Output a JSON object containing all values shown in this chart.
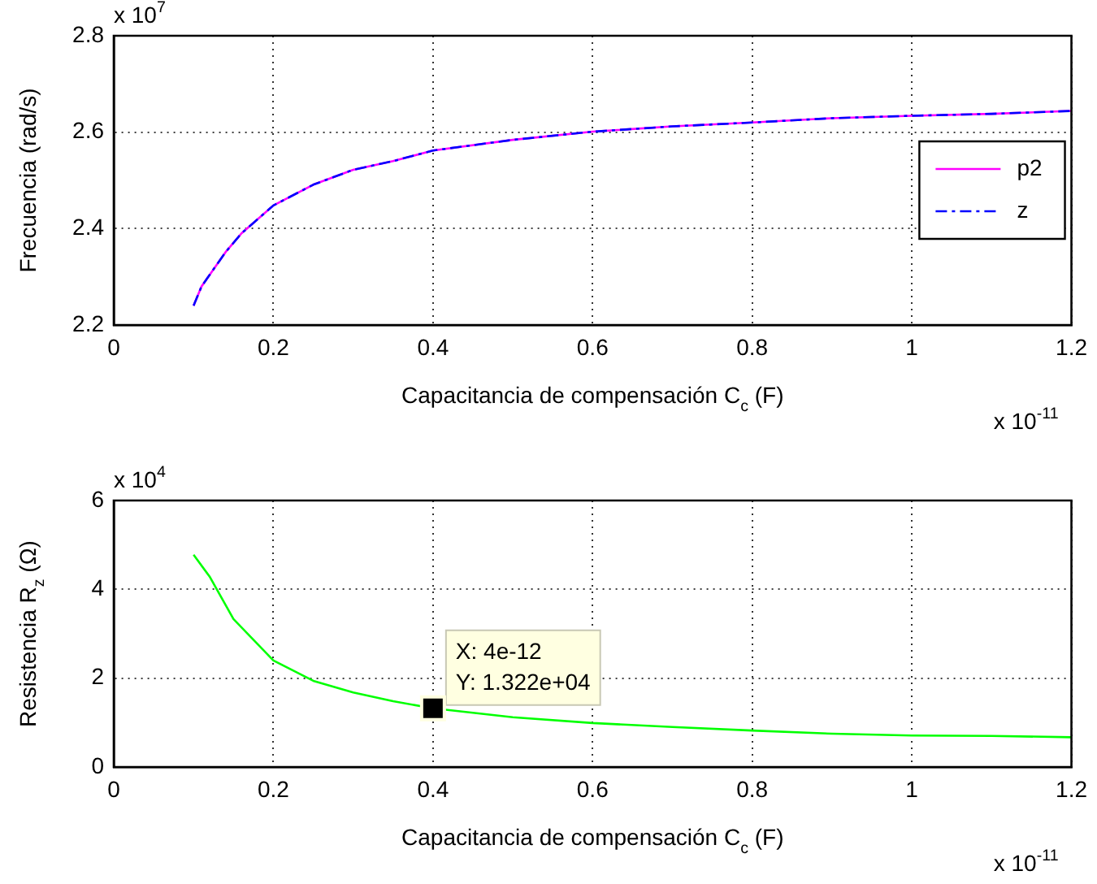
{
  "chart_data": [
    {
      "type": "line",
      "xlabel": "Capacitancia de compensación C$_{c}$ (F)",
      "ylabel": "Frecuencia (rad/s)",
      "xlim": [
        0,
        1.2
      ],
      "xticks": [
        0,
        0.2,
        0.4,
        0.6,
        0.8,
        1,
        1.2
      ],
      "ylim": [
        2.2,
        2.8
      ],
      "yticks": [
        2.2,
        2.4,
        2.6,
        2.8
      ],
      "grid": true,
      "legend": "right",
      "marker": "none",
      "annotations": [
        "x 10$^{7}$",
        "x 10$^{-11}$"
      ],
      "series": [
        {
          "name": "p2",
          "color": "#ff00ff",
          "line_style": "solid",
          "x": [
            0.1,
            0.11,
            0.14,
            0.16,
            0.2,
            0.25,
            0.3,
            0.35,
            0.4,
            0.5,
            0.6,
            0.7,
            0.8,
            0.9,
            1.0,
            1.1,
            1.2
          ],
          "values": [
            2.24,
            2.28,
            2.351,
            2.39,
            2.448,
            2.491,
            2.522,
            2.54,
            2.562,
            2.584,
            2.601,
            2.612,
            2.62,
            2.629,
            2.634,
            2.638,
            2.644
          ]
        },
        {
          "name": "z",
          "color": "#0000ff",
          "line_style": "dashed",
          "x": [
            0.1,
            0.11,
            0.14,
            0.16,
            0.2,
            0.25,
            0.3,
            0.35,
            0.4,
            0.5,
            0.6,
            0.7,
            0.8,
            0.9,
            1.0,
            1.1,
            1.2
          ],
          "values": [
            2.24,
            2.28,
            2.351,
            2.39,
            2.448,
            2.491,
            2.522,
            2.54,
            2.562,
            2.584,
            2.601,
            2.612,
            2.62,
            2.629,
            2.634,
            2.638,
            2.644
          ]
        }
      ]
    },
    {
      "type": "line",
      "xlabel": "Capacitancia de compensación C$_{c}$ (F)",
      "ylabel": "Resistencia R$_{z}$ (Ω)",
      "xlim": [
        0,
        1.2
      ],
      "xticks": [
        0,
        0.2,
        0.4,
        0.6,
        0.8,
        1,
        1.2
      ],
      "ylim": [
        0,
        6
      ],
      "yticks": [
        0,
        2,
        4,
        6
      ],
      "grid": true,
      "marker": "none",
      "annotations": [
        "x 10$^{4}$",
        "x 10$^{-11}$",
        {
          "text": "X: 4e-12\nY: 1.322e+04",
          "x": 0.4,
          "y": 1.322
        }
      ],
      "series": [
        {
          "color": "#00ff00",
          "line_style": "solid",
          "x": [
            0.1,
            0.12,
            0.15,
            0.2,
            0.25,
            0.3,
            0.35,
            0.4,
            0.5,
            0.6,
            0.7,
            0.8,
            0.9,
            1.0,
            1.1,
            1.2
          ],
          "values": [
            4.78,
            4.29,
            3.33,
            2.4,
            1.94,
            1.68,
            1.48,
            1.322,
            1.12,
            0.99,
            0.9,
            0.82,
            0.75,
            0.71,
            0.7,
            0.67
          ]
        }
      ]
    }
  ]
}
